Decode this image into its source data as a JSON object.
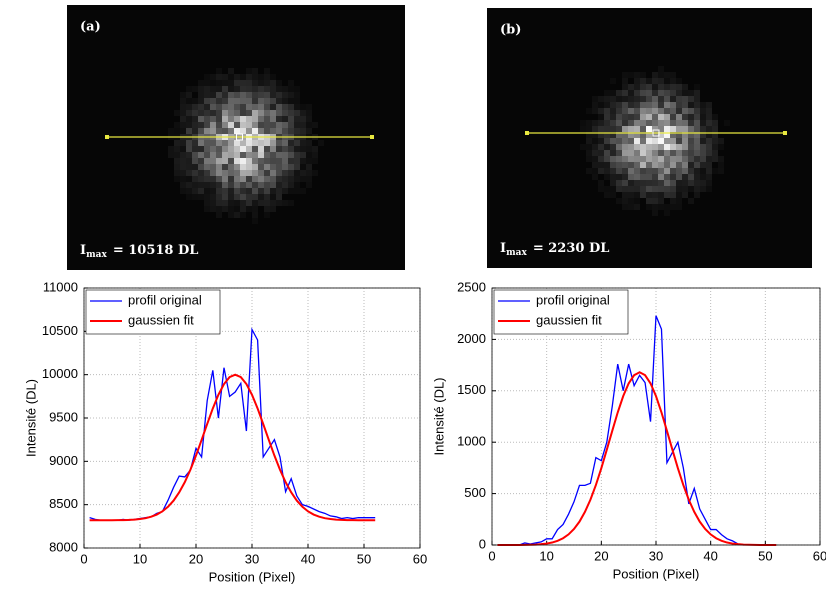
{
  "images": [
    {
      "label": "(a)",
      "caption_main": "I",
      "caption_sub": "max",
      "caption_rest": "= 10518 DL"
    },
    {
      "label": "(b)",
      "caption_main": "I",
      "caption_sub": "max",
      "caption_rest": "= 2230 DL"
    }
  ],
  "chart_data": [
    {
      "type": "line",
      "x_label": "Position (Pixel)",
      "y_label": "Intensité (DL)",
      "xlim": [
        0,
        60
      ],
      "xticks": [
        0,
        10,
        20,
        30,
        40,
        50,
        60
      ],
      "ylim": [
        8000,
        11000
      ],
      "yticks": [
        8000,
        8500,
        9000,
        9500,
        10000,
        10500,
        11000
      ],
      "grid": true,
      "legend": "upper left",
      "series": [
        {
          "name": "profil original",
          "color": "#0000ff",
          "x": [
            1,
            2,
            3,
            4,
            5,
            6,
            7,
            8,
            9,
            10,
            11,
            12,
            13,
            14,
            15,
            16,
            17,
            18,
            19,
            20,
            21,
            22,
            23,
            24,
            25,
            26,
            27,
            28,
            29,
            30,
            31,
            32,
            33,
            34,
            35,
            36,
            37,
            38,
            39,
            40,
            41,
            42,
            43,
            44,
            45,
            46,
            47,
            48,
            49,
            50,
            51,
            52
          ],
          "values": [
            8350,
            8330,
            8320,
            8320,
            8320,
            8320,
            8330,
            8320,
            8330,
            8340,
            8350,
            8360,
            8400,
            8420,
            8550,
            8700,
            8830,
            8820,
            8900,
            9150,
            9050,
            9700,
            10050,
            9500,
            10080,
            9750,
            9800,
            9900,
            9350,
            10520,
            10400,
            9050,
            9150,
            9250,
            9050,
            8650,
            8800,
            8600,
            8500,
            8480,
            8450,
            8420,
            8400,
            8370,
            8360,
            8340,
            8350,
            8340,
            8350,
            8350,
            8350,
            8350
          ]
        },
        {
          "name": "gaussien fit",
          "color": "#ff0000",
          "x": [
            1,
            2,
            3,
            4,
            5,
            6,
            7,
            8,
            9,
            10,
            11,
            12,
            13,
            14,
            15,
            16,
            17,
            18,
            19,
            20,
            21,
            22,
            23,
            24,
            25,
            26,
            27,
            28,
            29,
            30,
            31,
            32,
            33,
            34,
            35,
            36,
            37,
            38,
            39,
            40,
            41,
            42,
            43,
            44,
            45,
            46,
            47,
            48,
            49,
            50,
            51,
            52
          ],
          "values": [
            8320,
            8320,
            8320,
            8320,
            8320,
            8321,
            8322,
            8324,
            8328,
            8334,
            8344,
            8361,
            8386,
            8423,
            8476,
            8547,
            8642,
            8760,
            8903,
            9067,
            9247,
            9431,
            9610,
            9768,
            9892,
            9972,
            10000,
            9972,
            9892,
            9768,
            9610,
            9431,
            9247,
            9067,
            8903,
            8760,
            8642,
            8547,
            8476,
            8423,
            8386,
            8361,
            8344,
            8334,
            8328,
            8324,
            8322,
            8321,
            8320,
            8320,
            8320,
            8320
          ]
        }
      ]
    },
    {
      "type": "line",
      "x_label": "Position (Pixel)",
      "y_label": "Intensité (DL)",
      "xlim": [
        0,
        60
      ],
      "xticks": [
        0,
        10,
        20,
        30,
        40,
        50,
        60
      ],
      "ylim": [
        0,
        2500
      ],
      "yticks": [
        0,
        500,
        1000,
        1500,
        2000,
        2500
      ],
      "grid": true,
      "legend": "upper left",
      "series": [
        {
          "name": "profil original",
          "color": "#0000ff",
          "x": [
            5,
            6,
            7,
            8,
            9,
            10,
            11,
            12,
            13,
            14,
            15,
            16,
            17,
            18,
            19,
            20,
            21,
            22,
            23,
            24,
            25,
            26,
            27,
            28,
            29,
            30,
            31,
            32,
            33,
            34,
            35,
            36,
            37,
            38,
            39,
            40,
            41,
            42,
            43,
            44,
            45,
            46
          ],
          "values": [
            0,
            20,
            10,
            20,
            30,
            60,
            60,
            150,
            200,
            300,
            420,
            580,
            580,
            600,
            850,
            820,
            1000,
            1350,
            1760,
            1500,
            1760,
            1550,
            1650,
            1580,
            1200,
            2230,
            2100,
            800,
            900,
            1000,
            750,
            400,
            550,
            350,
            250,
            150,
            150,
            100,
            60,
            40,
            10,
            0
          ]
        },
        {
          "name": "gaussien fit",
          "color": "#ff0000",
          "x": [
            1,
            2,
            3,
            4,
            5,
            6,
            7,
            8,
            9,
            10,
            11,
            12,
            13,
            14,
            15,
            16,
            17,
            18,
            19,
            20,
            21,
            22,
            23,
            24,
            25,
            26,
            27,
            28,
            29,
            30,
            31,
            32,
            33,
            34,
            35,
            36,
            37,
            38,
            39,
            40,
            41,
            42,
            43,
            44,
            45,
            46,
            47,
            48,
            49,
            50,
            51,
            52
          ],
          "values": [
            0,
            0,
            0,
            0,
            0,
            1,
            2,
            4,
            8,
            14,
            24,
            41,
            66,
            103,
            156,
            227,
            322,
            440,
            583,
            747,
            927,
            1111,
            1290,
            1448,
            1572,
            1652,
            1680,
            1652,
            1572,
            1448,
            1290,
            1111,
            927,
            747,
            583,
            440,
            322,
            227,
            156,
            103,
            66,
            41,
            24,
            14,
            8,
            4,
            2,
            1,
            0,
            0,
            0,
            0
          ]
        }
      ]
    }
  ]
}
